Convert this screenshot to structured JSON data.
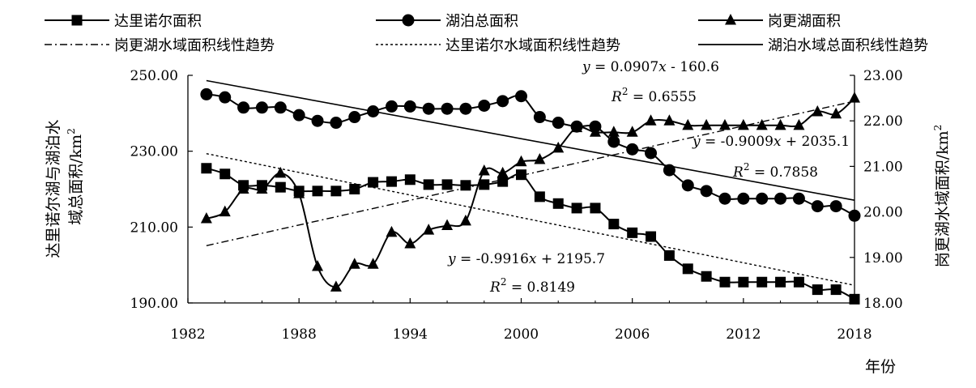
{
  "chart_data": {
    "type": "line",
    "x_range": [
      1982,
      2018
    ],
    "x_ticks": [
      "1982",
      "1988",
      "1994",
      "2000",
      "2006",
      "2012",
      "2018"
    ],
    "xlabel": "年份",
    "ylabel_left": "达里诺尔湖与湖泊水域总面积/km²",
    "ylabel_left_lines": [
      "达里诺尔湖与湖泊水",
      "域总面积/km"
    ],
    "ylabel_left_sup": "2",
    "ylim_left": [
      190,
      250
    ],
    "yticks_left": [
      "190.00",
      "210.00",
      "230.00",
      "250.00"
    ],
    "ylabel_right": "岗更湖水域面积/km²",
    "ylabel_right_text": "岗更湖水域面积/km",
    "ylabel_right_sup": "2",
    "ylim_right": [
      18,
      23
    ],
    "yticks_right": [
      "18.00",
      "19.00",
      "20.00",
      "21.00",
      "22.00",
      "23.00"
    ],
    "legend_position": "top",
    "series": [
      {
        "name": "达里诺尔面积",
        "axis": "left",
        "marker": "square",
        "x": [
          1983,
          1984,
          1985,
          1986,
          1987,
          1988,
          1989,
          1990,
          1991,
          1992,
          1993,
          1994,
          1995,
          1996,
          1997,
          1998,
          1999,
          2000,
          2001,
          2002,
          2003,
          2004,
          2005,
          2006,
          2007,
          2008,
          2009,
          2010,
          2011,
          2012,
          2013,
          2014,
          2015,
          2016,
          2017,
          2018
        ],
        "values": [
          225.5,
          224.0,
          221.0,
          221.0,
          220.5,
          219.5,
          219.5,
          219.5,
          220.0,
          221.8,
          222.0,
          222.5,
          221.2,
          221.2,
          221.0,
          221.2,
          222.0,
          223.8,
          218.0,
          216.2,
          215.0,
          215.0,
          210.8,
          208.5,
          207.5,
          202.5,
          199.0,
          197.0,
          195.5,
          195.5,
          195.5,
          195.5,
          195.5,
          193.5,
          193.5,
          191.0
        ]
      },
      {
        "name": "湖泊总面积",
        "axis": "left",
        "marker": "circle",
        "x": [
          1983,
          1984,
          1985,
          1986,
          1987,
          1988,
          1989,
          1990,
          1991,
          1992,
          1993,
          1994,
          1995,
          1996,
          1997,
          1998,
          1999,
          2000,
          2001,
          2002,
          2003,
          2004,
          2005,
          2006,
          2007,
          2008,
          2009,
          2010,
          2011,
          2012,
          2013,
          2014,
          2015,
          2016,
          2017,
          2018
        ],
        "values": [
          245.0,
          244.2,
          241.5,
          241.5,
          241.5,
          239.5,
          238.0,
          237.5,
          239.0,
          240.5,
          241.8,
          241.8,
          241.2,
          241.2,
          241.2,
          242.0,
          243.2,
          244.5,
          239.0,
          237.5,
          236.5,
          236.5,
          232.5,
          230.5,
          229.5,
          225.0,
          221.0,
          219.5,
          217.5,
          217.5,
          217.5,
          217.5,
          217.5,
          215.5,
          215.5,
          213.0
        ]
      },
      {
        "name": "岗更湖面积",
        "axis": "right",
        "marker": "triangle",
        "x": [
          1983,
          1984,
          1985,
          1986,
          1987,
          1988,
          1989,
          1990,
          1991,
          1992,
          1993,
          1994,
          1995,
          1996,
          1997,
          1998,
          1999,
          2000,
          2001,
          2002,
          2003,
          2004,
          2005,
          2006,
          2007,
          2008,
          2009,
          2010,
          2011,
          2012,
          2013,
          2014,
          2015,
          2016,
          2017,
          2018
        ],
        "values": [
          19.85,
          20.0,
          20.5,
          20.5,
          20.85,
          20.4,
          18.8,
          18.35,
          18.85,
          18.85,
          19.55,
          19.3,
          19.6,
          19.7,
          19.8,
          20.9,
          20.85,
          21.1,
          21.15,
          21.4,
          21.85,
          21.75,
          21.75,
          21.75,
          22.0,
          22.0,
          21.9,
          21.9,
          21.9,
          21.9,
          21.9,
          21.9,
          21.9,
          22.2,
          22.15,
          22.5
        ]
      }
    ],
    "trendlines": [
      {
        "name": "岗更湖水域面积线性趋势",
        "axis": "right",
        "style": "dash-dot",
        "slope": 0.0907,
        "intercept": -160.6,
        "x_range": [
          1983,
          2018
        ]
      },
      {
        "name": "达里诺尔水域面积线性趋势",
        "axis": "left",
        "style": "dotted",
        "slope": -0.9916,
        "intercept": 2195.7,
        "x_range": [
          1983,
          2018
        ]
      },
      {
        "name": "湖泊水域总面积线性趋势",
        "axis": "left",
        "style": "solid",
        "slope": -0.9009,
        "intercept": 2035.1,
        "x_range": [
          1983,
          2018
        ]
      }
    ],
    "legend_labels": [
      "达里诺尔面积",
      "湖泊总面积",
      "岗更湖面积",
      "岗更湖水域面积线性趋势",
      "达里诺尔水域面积线性趋势",
      "湖泊水域总面积线性趋势"
    ],
    "annotations": [
      {
        "id": "gg",
        "eq_slope": "0.0907",
        "eq_int": "- 160.6",
        "r2": "= 0.6555"
      },
      {
        "id": "total",
        "eq_slope": "-0.9009",
        "eq_int": "+ 2035.1",
        "r2": "= 0.7858"
      },
      {
        "id": "dali",
        "eq_slope": "-0.9916",
        "eq_int": "+ 2195.7",
        "r2": "= 0.8149"
      }
    ]
  }
}
